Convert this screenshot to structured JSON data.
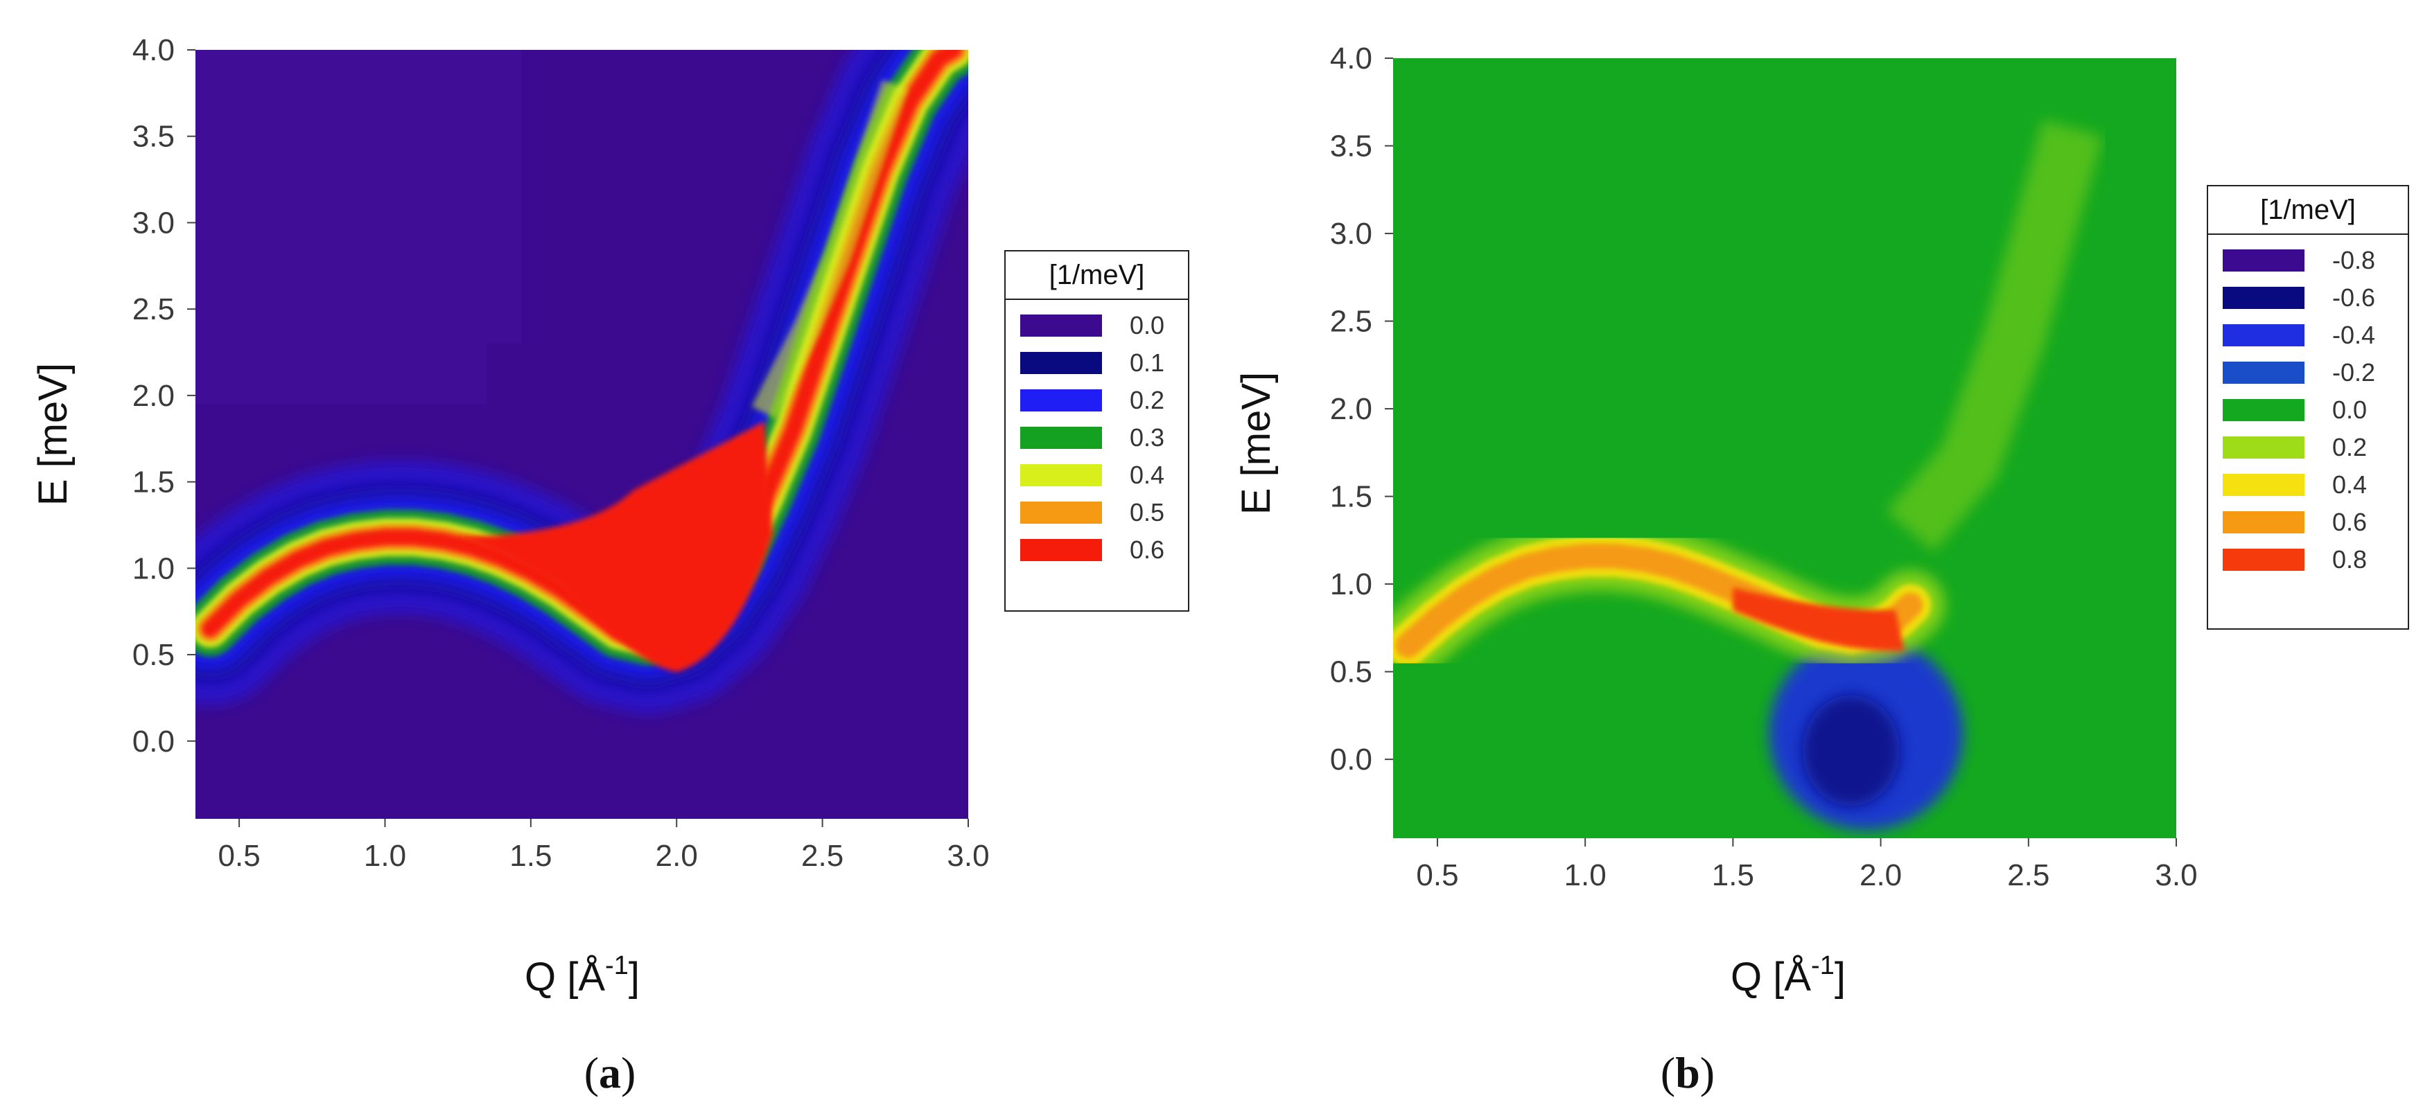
{
  "chart_data": [
    {
      "type": "heatmap",
      "panel_label": "a",
      "xlabel_base": "Q [Å",
      "xlabel_sup": "-1",
      "xlabel_end": "]",
      "ylabel": "E [meV]",
      "xlim": [
        0.35,
        3.0
      ],
      "ylim": [
        -0.45,
        4.0
      ],
      "x_ticks": [
        "0.5",
        "1.0",
        "1.5",
        "2.0",
        "2.5",
        "3.0"
      ],
      "y_ticks": [
        "0.0",
        "0.5",
        "1.0",
        "1.5",
        "2.0",
        "2.5",
        "3.0",
        "3.5",
        "4.0"
      ],
      "legend_title": "[1/meV]",
      "legend_entries": [
        {
          "label": "0.0",
          "color": "#3b0a8f"
        },
        {
          "label": "0.1",
          "color": "#0a0a80"
        },
        {
          "label": "0.2",
          "color": "#1e1ef5"
        },
        {
          "label": "0.3",
          "color": "#14a020"
        },
        {
          "label": "0.4",
          "color": "#d8ef1c"
        },
        {
          "label": "0.5",
          "color": "#f59a12"
        },
        {
          "label": "0.6",
          "color": "#f51c0c"
        }
      ],
      "background_color": "#3b0a8f",
      "dispersion_curve": {
        "Q": [
          0.4,
          0.5,
          0.6,
          0.7,
          0.8,
          0.9,
          1.0,
          1.1,
          1.2,
          1.3,
          1.4,
          1.5,
          1.6,
          1.7,
          1.8,
          1.9,
          2.0,
          2.1,
          2.2,
          2.3,
          2.4,
          2.5,
          2.6,
          2.7,
          2.8,
          2.9,
          2.95
        ],
        "E": [
          0.65,
          0.82,
          0.95,
          1.05,
          1.12,
          1.16,
          1.18,
          1.18,
          1.16,
          1.12,
          1.06,
          0.98,
          0.88,
          0.76,
          0.64,
          0.6,
          0.65,
          0.8,
          1.05,
          1.4,
          1.8,
          2.3,
          2.8,
          3.3,
          3.7,
          3.95,
          4.0
        ]
      }
    },
    {
      "type": "heatmap",
      "panel_label": "b",
      "xlabel_base": "Q [Å",
      "xlabel_sup": "-1",
      "xlabel_end": "]",
      "ylabel": "E [meV]",
      "xlim": [
        0.35,
        3.0
      ],
      "ylim": [
        -0.45,
        4.0
      ],
      "x_ticks": [
        "0.5",
        "1.0",
        "1.5",
        "2.0",
        "2.5",
        "3.0"
      ],
      "y_ticks": [
        "0.0",
        "0.5",
        "1.0",
        "1.5",
        "2.0",
        "2.5",
        "3.0",
        "3.5",
        "4.0"
      ],
      "legend_title": "[1/meV]",
      "legend_entries": [
        {
          "label": "-0.8",
          "color": "#3b0a8f"
        },
        {
          "label": "-0.6",
          "color": "#0a0a80"
        },
        {
          "label": "-0.4",
          "color": "#1e2ee0"
        },
        {
          "label": "-0.2",
          "color": "#1a4ec8"
        },
        {
          "label": "0.0",
          "color": "#14a820"
        },
        {
          "label": "0.2",
          "color": "#9edb18"
        },
        {
          "label": "0.4",
          "color": "#f5e010"
        },
        {
          "label": "0.6",
          "color": "#f59a12"
        },
        {
          "label": "0.8",
          "color": "#f53a0c"
        }
      ],
      "background_color": "#14a820",
      "dispersion_curve": {
        "Q": [
          0.4,
          0.5,
          0.6,
          0.7,
          0.8,
          0.9,
          1.0,
          1.1,
          1.2,
          1.3,
          1.4,
          1.5,
          1.6,
          1.7,
          1.8,
          1.9,
          2.0,
          2.05,
          2.1
        ],
        "E": [
          0.65,
          0.8,
          0.93,
          1.03,
          1.1,
          1.14,
          1.16,
          1.16,
          1.14,
          1.1,
          1.04,
          0.97,
          0.9,
          0.82,
          0.75,
          0.72,
          0.75,
          0.8,
          0.88
        ]
      }
    }
  ]
}
